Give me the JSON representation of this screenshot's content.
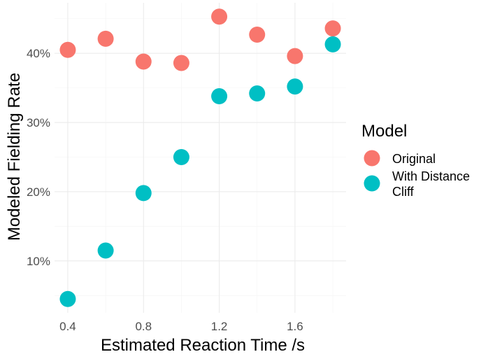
{
  "chart_data": {
    "type": "scatter",
    "xlabel": "Estimated Reaction Time /s",
    "ylabel": "Modeled Fielding Rate",
    "x_ticks": [
      0.4,
      0.8,
      1.2,
      1.6
    ],
    "x_tick_labels": [
      "0.4",
      "0.8",
      "1.2",
      "1.6"
    ],
    "y_ticks": [
      0.1,
      0.2,
      0.3,
      0.4
    ],
    "y_tick_labels": [
      "10%",
      "20%",
      "30%",
      "40%"
    ],
    "xlim": [
      0.33,
      1.87
    ],
    "ylim": [
      0.025,
      0.473
    ],
    "grid": true,
    "legend": {
      "title": "Model",
      "position": "right"
    },
    "series": [
      {
        "name": "Original",
        "label_lines": [
          "Original"
        ],
        "color": "#F8766D",
        "x": [
          0.4,
          0.6,
          0.8,
          1.0,
          1.2,
          1.4,
          1.6,
          1.8
        ],
        "y": [
          0.405,
          0.421,
          0.388,
          0.386,
          0.453,
          0.427,
          0.396,
          0.436
        ]
      },
      {
        "name": "With Distance Cliff",
        "label_lines": [
          "With Distance",
          "Cliff"
        ],
        "color": "#00BFC4",
        "x": [
          0.4,
          0.6,
          0.8,
          1.0,
          1.2,
          1.4,
          1.6,
          1.8
        ],
        "y": [
          0.045,
          0.115,
          0.198,
          0.25,
          0.338,
          0.342,
          0.352,
          0.413
        ]
      }
    ]
  }
}
